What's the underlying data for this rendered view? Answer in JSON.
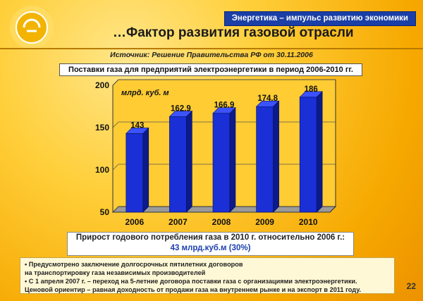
{
  "header": {
    "banner": "Энергетика – импульс развитию экономики",
    "title": "…Фактор развития газовой отрасли",
    "source": "Источник: Решение Правительства РФ от 30.11.2006"
  },
  "colors": {
    "bar_front": "#1a2fd6",
    "bar_top": "#3b52ff",
    "bar_side": "#0c1a8a",
    "accent_blue": "#1c3fb0",
    "plot_bg": "#ffcc33"
  },
  "chart_data": {
    "type": "bar",
    "title": "Поставки газа для предприятий электроэнергетики в период 2006-2010 гг.",
    "unit_label": "млрд. куб. м",
    "categories": [
      "2006",
      "2007",
      "2008",
      "2009",
      "2010"
    ],
    "values": [
      143,
      162.9,
      166.9,
      174.8,
      186
    ],
    "value_labels": [
      "143",
      "162.9",
      "166.9",
      "174.8",
      "186"
    ],
    "ylim": [
      50,
      200
    ],
    "yticks": [
      50,
      100,
      150,
      200
    ],
    "grid": true,
    "legend": "none"
  },
  "summary": {
    "line1": "Прирост годового потребления газа в 2010 г. относительно 2006 г.:",
    "line2": "43 млрд.куб.м (30%)"
  },
  "notes": {
    "item1_a": "• Предусмотрено заключение долгосрочных пятилетних договоров",
    "item1_b": "на транспортировку газа независимых производителей",
    "item2_a": "• С 1 апреля 2007 г. – переход на 5-летние договора поставки газа с организациями электроэнергетики.",
    "item2_b": "Ценовой ориентир – равная доходность от продажи газа на внутреннем рынке и на экспорт в 2011 году."
  },
  "page_number": "22"
}
